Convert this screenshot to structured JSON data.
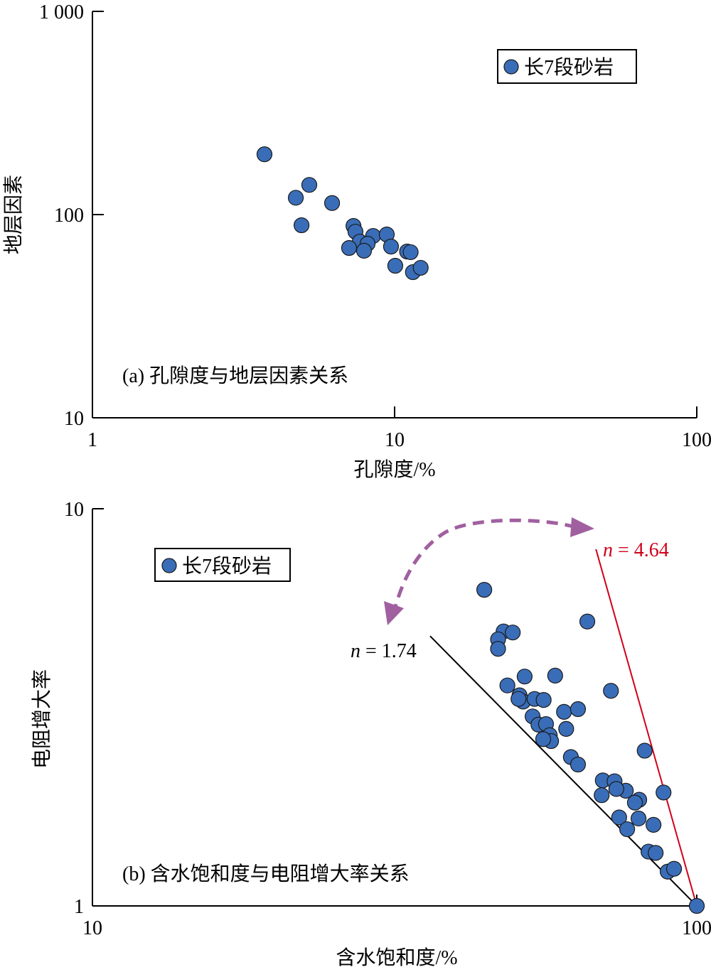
{
  "chart_data": [
    {
      "type": "scatter",
      "panel_label": "(a) 孔隙度与地层因素关系",
      "xlabel": "孔隙度/%",
      "ylabel": "地层因素",
      "xscale": "log",
      "yscale": "log",
      "xlim": [
        1,
        100
      ],
      "ylim": [
        10,
        1000
      ],
      "xticks": [
        "1",
        "10",
        "100"
      ],
      "yticks": [
        "10",
        "100",
        "1 000"
      ],
      "grid": false,
      "legend_position": "top-right",
      "series": [
        {
          "name": "长7段砂岩",
          "color": "#3A6DB8",
          "points": [
            [
              3.71,
              198
            ],
            [
              4.71,
              121
            ],
            [
              5.22,
              140
            ],
            [
              4.92,
              88.6
            ],
            [
              6.21,
              114
            ],
            [
              7.31,
              87.9
            ],
            [
              7.42,
              82.4
            ],
            [
              8.49,
              78.5
            ],
            [
              7.67,
              73.6
            ],
            [
              8.14,
              71.9
            ],
            [
              7.07,
              68.5
            ],
            [
              7.92,
              66.4
            ],
            [
              9.42,
              79.8
            ],
            [
              9.73,
              69.6
            ],
            [
              11.0,
              65.8
            ],
            [
              11.3,
              65.3
            ],
            [
              10.05,
              56
            ],
            [
              11.5,
              52.1
            ],
            [
              12.2,
              54.7
            ]
          ]
        }
      ]
    },
    {
      "type": "scatter",
      "panel_label": "(b) 含水饱和度与电阻增大率关系",
      "xlabel": "含水饱和度/%",
      "ylabel": "电阻增大率",
      "xscale": "log",
      "yscale": "log",
      "xlim": [
        10,
        100
      ],
      "ylim": [
        1,
        10
      ],
      "xticks": [
        "10",
        "100"
      ],
      "yticks": [
        "1",
        "10"
      ],
      "grid": false,
      "legend_position": "top-left",
      "series": [
        {
          "name": "长7段砂岩",
          "color": "#3A6DB8",
          "points": [
            [
              44.5,
              6.25
            ],
            [
              65.9,
              5.2
            ],
            [
              47.9,
              4.91
            ],
            [
              49.6,
              4.88
            ],
            [
              46.9,
              4.69
            ],
            [
              46.9,
              4.44
            ],
            [
              51.9,
              3.78
            ],
            [
              58.3,
              3.8
            ],
            [
              48.6,
              3.59
            ],
            [
              72.1,
              3.48
            ],
            [
              50.9,
              3.39
            ],
            [
              51.6,
              3.27
            ],
            [
              50.7,
              3.32
            ],
            [
              53.9,
              3.32
            ],
            [
              55.8,
              3.3
            ],
            [
              60.3,
              3.08
            ],
            [
              63.6,
              3.13
            ],
            [
              53.5,
              3.0
            ],
            [
              54.7,
              2.86
            ],
            [
              56.3,
              2.87
            ],
            [
              60.8,
              2.79
            ],
            [
              57.1,
              2.69
            ],
            [
              57.4,
              2.6
            ],
            [
              55.7,
              2.63
            ],
            [
              61.9,
              2.37
            ],
            [
              63.6,
              2.27
            ],
            [
              82.0,
              2.46
            ],
            [
              69.9,
              2.07
            ],
            [
              73.1,
              2.06
            ],
            [
              76.3,
              1.95
            ],
            [
              73.6,
              1.97
            ],
            [
              69.6,
              1.9
            ],
            [
              88.1,
              1.93
            ],
            [
              80.3,
              1.85
            ],
            [
              79.0,
              1.82
            ],
            [
              74.4,
              1.67
            ],
            [
              80.1,
              1.66
            ],
            [
              84.8,
              1.6
            ],
            [
              76.7,
              1.56
            ],
            [
              83.2,
              1.37
            ],
            [
              85.5,
              1.36
            ],
            [
              89.5,
              1.22
            ],
            [
              91.7,
              1.24
            ],
            [
              100,
              1.0
            ]
          ]
        }
      ],
      "lines": [
        {
          "label_italic": "n",
          "label_rest": " = 1.74",
          "color": "#000000",
          "from": [
            36.2,
            4.78
          ],
          "to": [
            100,
            1
          ]
        },
        {
          "label_italic": "n",
          "label_rest": " = 4.64",
          "color": "#D0021B",
          "from": [
            68.1,
            7.91
          ],
          "to": [
            100,
            1
          ]
        }
      ],
      "annotation_arrow_color": "#A060A0"
    }
  ]
}
